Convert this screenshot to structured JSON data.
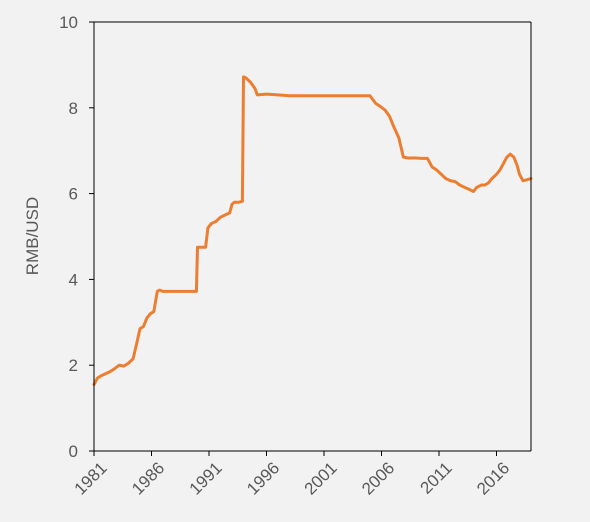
{
  "chart_data": {
    "type": "line",
    "title": "",
    "xlabel": "",
    "ylabel": "RMB/USD",
    "xlim": [
      1981,
      2019.0
    ],
    "ylim": [
      0,
      10
    ],
    "x_ticks": [
      1981,
      1986,
      1991,
      1996,
      2001,
      2006,
      2011,
      2016
    ],
    "y_ticks": [
      0,
      2,
      4,
      6,
      8,
      10
    ],
    "grid": false,
    "legend": "none",
    "series": [
      {
        "color": "#ed7d31",
        "x": [
          1981.0,
          1981.3,
          1981.6,
          1982.0,
          1982.4,
          1982.8,
          1983.2,
          1983.6,
          1984.0,
          1984.4,
          1984.7,
          1985.0,
          1985.3,
          1985.6,
          1985.9,
          1986.2,
          1986.5,
          1986.7,
          1987.0,
          1988.0,
          1989.0,
          1989.9,
          1990.0,
          1990.7,
          1990.9,
          1991.2,
          1991.6,
          1992.0,
          1992.4,
          1992.8,
          1993.0,
          1993.2,
          1993.6,
          1993.9,
          1994.0,
          1994.2,
          1994.6,
          1995.0,
          1995.2,
          1996.0,
          1997.0,
          1998.0,
          1999.0,
          2000.0,
          2001.0,
          2002.0,
          2003.0,
          2004.0,
          2005.0,
          2005.5,
          2005.8,
          2006.3,
          2006.7,
          2007.0,
          2007.5,
          2007.9,
          2008.3,
          2008.6,
          2009.0,
          2009.5,
          2010.0,
          2010.4,
          2010.8,
          2011.2,
          2011.6,
          2012.0,
          2012.4,
          2012.8,
          2013.2,
          2013.6,
          2014.0,
          2014.3,
          2014.7,
          2015.0,
          2015.3,
          2015.6,
          2016.0,
          2016.3,
          2016.6,
          2016.9,
          2017.2,
          2017.5,
          2017.8,
          2018.0,
          2018.3,
          2018.6,
          2019.0
        ],
        "y": [
          1.55,
          1.7,
          1.75,
          1.8,
          1.85,
          1.92,
          2.0,
          1.98,
          2.05,
          2.15,
          2.5,
          2.85,
          2.9,
          3.1,
          3.2,
          3.25,
          3.72,
          3.75,
          3.72,
          3.72,
          3.72,
          3.72,
          4.75,
          4.75,
          5.2,
          5.3,
          5.35,
          5.45,
          5.5,
          5.55,
          5.75,
          5.8,
          5.8,
          5.82,
          8.72,
          8.7,
          8.6,
          8.45,
          8.3,
          8.32,
          8.3,
          8.28,
          8.28,
          8.28,
          8.28,
          8.28,
          8.28,
          8.28,
          8.28,
          8.1,
          8.05,
          7.95,
          7.8,
          7.6,
          7.3,
          6.85,
          6.83,
          6.83,
          6.83,
          6.82,
          6.82,
          6.62,
          6.55,
          6.45,
          6.35,
          6.3,
          6.28,
          6.2,
          6.15,
          6.1,
          6.05,
          6.15,
          6.2,
          6.2,
          6.25,
          6.35,
          6.45,
          6.55,
          6.7,
          6.85,
          6.92,
          6.85,
          6.65,
          6.45,
          6.3,
          6.32,
          6.35
        ]
      }
    ]
  }
}
